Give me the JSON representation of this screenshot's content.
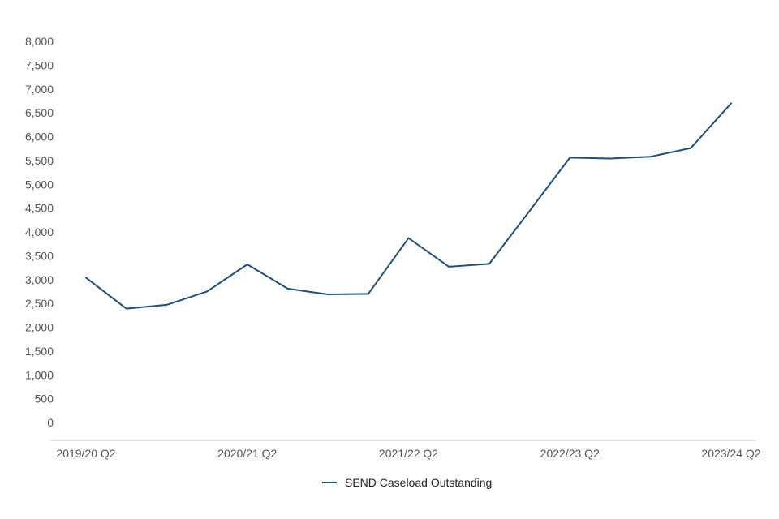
{
  "chart_data": {
    "type": "line",
    "title": "",
    "xlabel": "",
    "ylabel": "",
    "categories": [
      "2019/20 Q2",
      "2019/20 Q3",
      "2019/20 Q4",
      "2020/21 Q1",
      "2020/21 Q2",
      "2020/21 Q3",
      "2020/21 Q4",
      "2021/22 Q1",
      "2021/22 Q2",
      "2021/22 Q3",
      "2021/22 Q4",
      "2022/23 Q1",
      "2022/23 Q2",
      "2022/23 Q3",
      "2022/23 Q4",
      "2023/24 Q1",
      "2023/24 Q2"
    ],
    "x_tick_labels": [
      "2019/20 Q2",
      "2020/21 Q2",
      "2021/22 Q2",
      "2022/23 Q2",
      "2023/24 Q2"
    ],
    "y_tick_labels": [
      "0",
      "500",
      "1,000",
      "1,500",
      "2,000",
      "2,500",
      "3,000",
      "3,500",
      "4,000",
      "4,500",
      "5,000",
      "5,500",
      "6,000",
      "6,500",
      "7,000",
      "7,500",
      "8,000"
    ],
    "ylim": [
      0,
      8000
    ],
    "grid": false,
    "legend_position": "bottom",
    "series": [
      {
        "name": "SEND Caseload Outstanding",
        "color": "#1f4e79",
        "values": [
          3040,
          2390,
          2470,
          2750,
          3320,
          2810,
          2690,
          2700,
          3870,
          3270,
          3330,
          4440,
          5560,
          5540,
          5580,
          5760,
          6700
        ]
      }
    ]
  }
}
